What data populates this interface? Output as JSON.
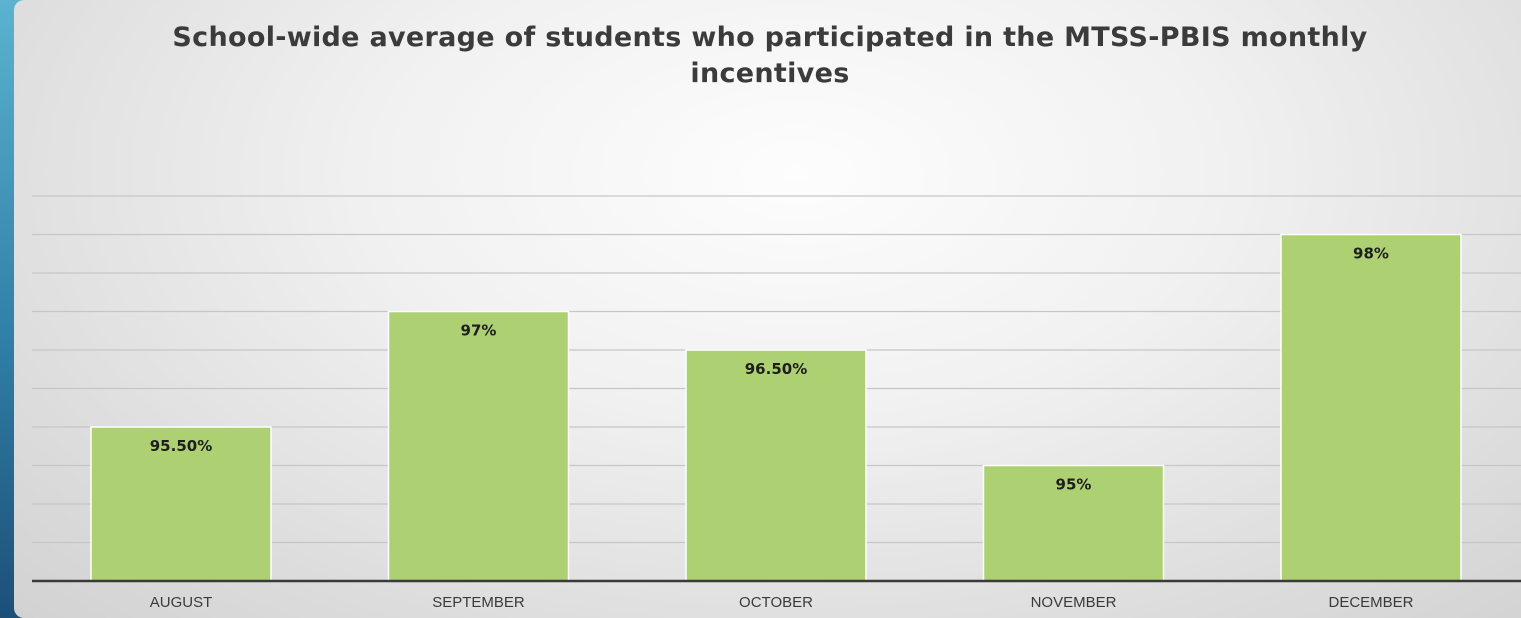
{
  "chart_data": {
    "type": "bar",
    "title": "School-wide average of students who participated in the MTSS-PBIS monthly incentives",
    "categories": [
      "AUGUST",
      "SEPTEMBER",
      "OCTOBER",
      "NOVEMBER",
      "DECEMBER"
    ],
    "values": [
      95.5,
      97,
      96.5,
      95,
      98
    ],
    "data_labels": [
      "95.50%",
      "97%",
      "96.50%",
      "95%",
      "98%"
    ],
    "ylim": [
      93.5,
      98.5
    ],
    "grid": true,
    "legend": "none",
    "bar_color": "#acd072"
  },
  "colors": {
    "accent": "#2f7fa8",
    "bar": "#acd072"
  }
}
